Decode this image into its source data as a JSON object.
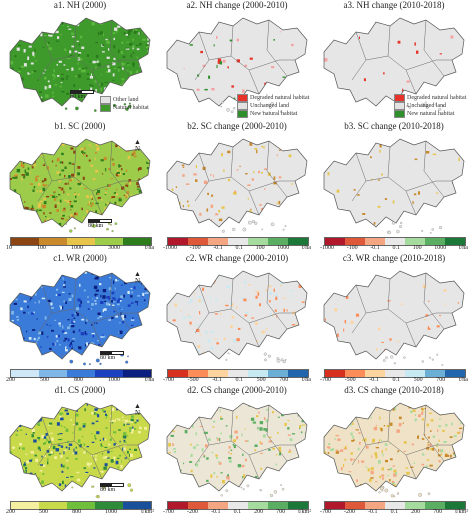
{
  "panels": {
    "a1": {
      "title": "a1. NH (2000)",
      "legend": [
        "Other land",
        "Natural habitat"
      ],
      "scale": "80 km"
    },
    "a2": {
      "title": "a2. NH change (2000-2010)",
      "legend": [
        "Degraded natural habitat",
        "Unchanged land",
        "New natural habitat"
      ]
    },
    "a3": {
      "title": "a3. NH change (2010-2018)",
      "legend": [
        "Degraded natural habitat",
        "Unchanged land",
        "New natural habitat"
      ]
    },
    "b1": {
      "title": "b1. SC (2000)",
      "scale": "80 km",
      "ticks": [
        "10",
        "100",
        "1000",
        "3000",
        "t/ha"
      ]
    },
    "b2": {
      "title": "b2. SC change (2000-2010)",
      "ticks": [
        "-1000",
        "-100",
        "-0.1",
        "0.1",
        "100",
        "1000",
        "t/ha"
      ]
    },
    "b3": {
      "title": "b3. SC change (2010-2018)",
      "ticks": [
        "-1000",
        "-100",
        "-0.1",
        "0.1",
        "100",
        "1000",
        "t/ha"
      ]
    },
    "c1": {
      "title": "c1. WR (2000)",
      "scale": "80 km",
      "ticks": [
        "200",
        "500",
        "800",
        "1000",
        "t/ha"
      ]
    },
    "c2": {
      "title": "c2. WR change (2000-2010)",
      "ticks": [
        "-700",
        "-500",
        "-0.1",
        "0.1",
        "500",
        "700",
        "t/ha"
      ]
    },
    "c3": {
      "title": "c3. WR change (2010-2018)",
      "ticks": [
        "-700",
        "-500",
        "-0.1",
        "0.1",
        "500",
        "700",
        "t/ha"
      ]
    },
    "d1": {
      "title": "d1. CS (2000)",
      "scale": "80 km",
      "ticks": [
        "200",
        "500",
        "800",
        "1000",
        "t/km²"
      ]
    },
    "d2": {
      "title": "d2. CS change (2000-2010)",
      "ticks": [
        "-700",
        "-200",
        "-0.1",
        "0.1",
        "200",
        "700",
        "t/km²"
      ]
    },
    "d3": {
      "title": "d3. CS change (2010-2018)",
      "ticks": [
        "-700",
        "-200",
        "-0.1",
        "0.1",
        "200",
        "700",
        "t/km²"
      ]
    }
  },
  "north_label": "N",
  "colors": {
    "nh_green": "#3f9a2c",
    "other_land": "#e3e3e3",
    "degraded": "#e8332b",
    "new": "#2f8f2a",
    "sc_ramp": [
      "#8b4513",
      "#c98a2c",
      "#e6c54a",
      "#9ccc4a",
      "#2e7d1d"
    ],
    "div_ramp": [
      "#b2182b",
      "#e0583a",
      "#f4a582",
      "#e8e8e8",
      "#a6dba0",
      "#5aae61",
      "#1b7837"
    ],
    "wr_ramp": [
      "#cfe8f7",
      "#7fb8e8",
      "#3a7ad9",
      "#1a3fbf",
      "#0a1f7f"
    ],
    "wrc_ramp": [
      "#d7301f",
      "#fc8d59",
      "#fdd49e",
      "#e8e8e8",
      "#c7e9f1",
      "#6baed6",
      "#2166ac"
    ],
    "cs_ramp": [
      "#f5f0a0",
      "#c8d94a",
      "#6fbf3a",
      "#2e8b3a",
      "#1a4f9c"
    ]
  }
}
